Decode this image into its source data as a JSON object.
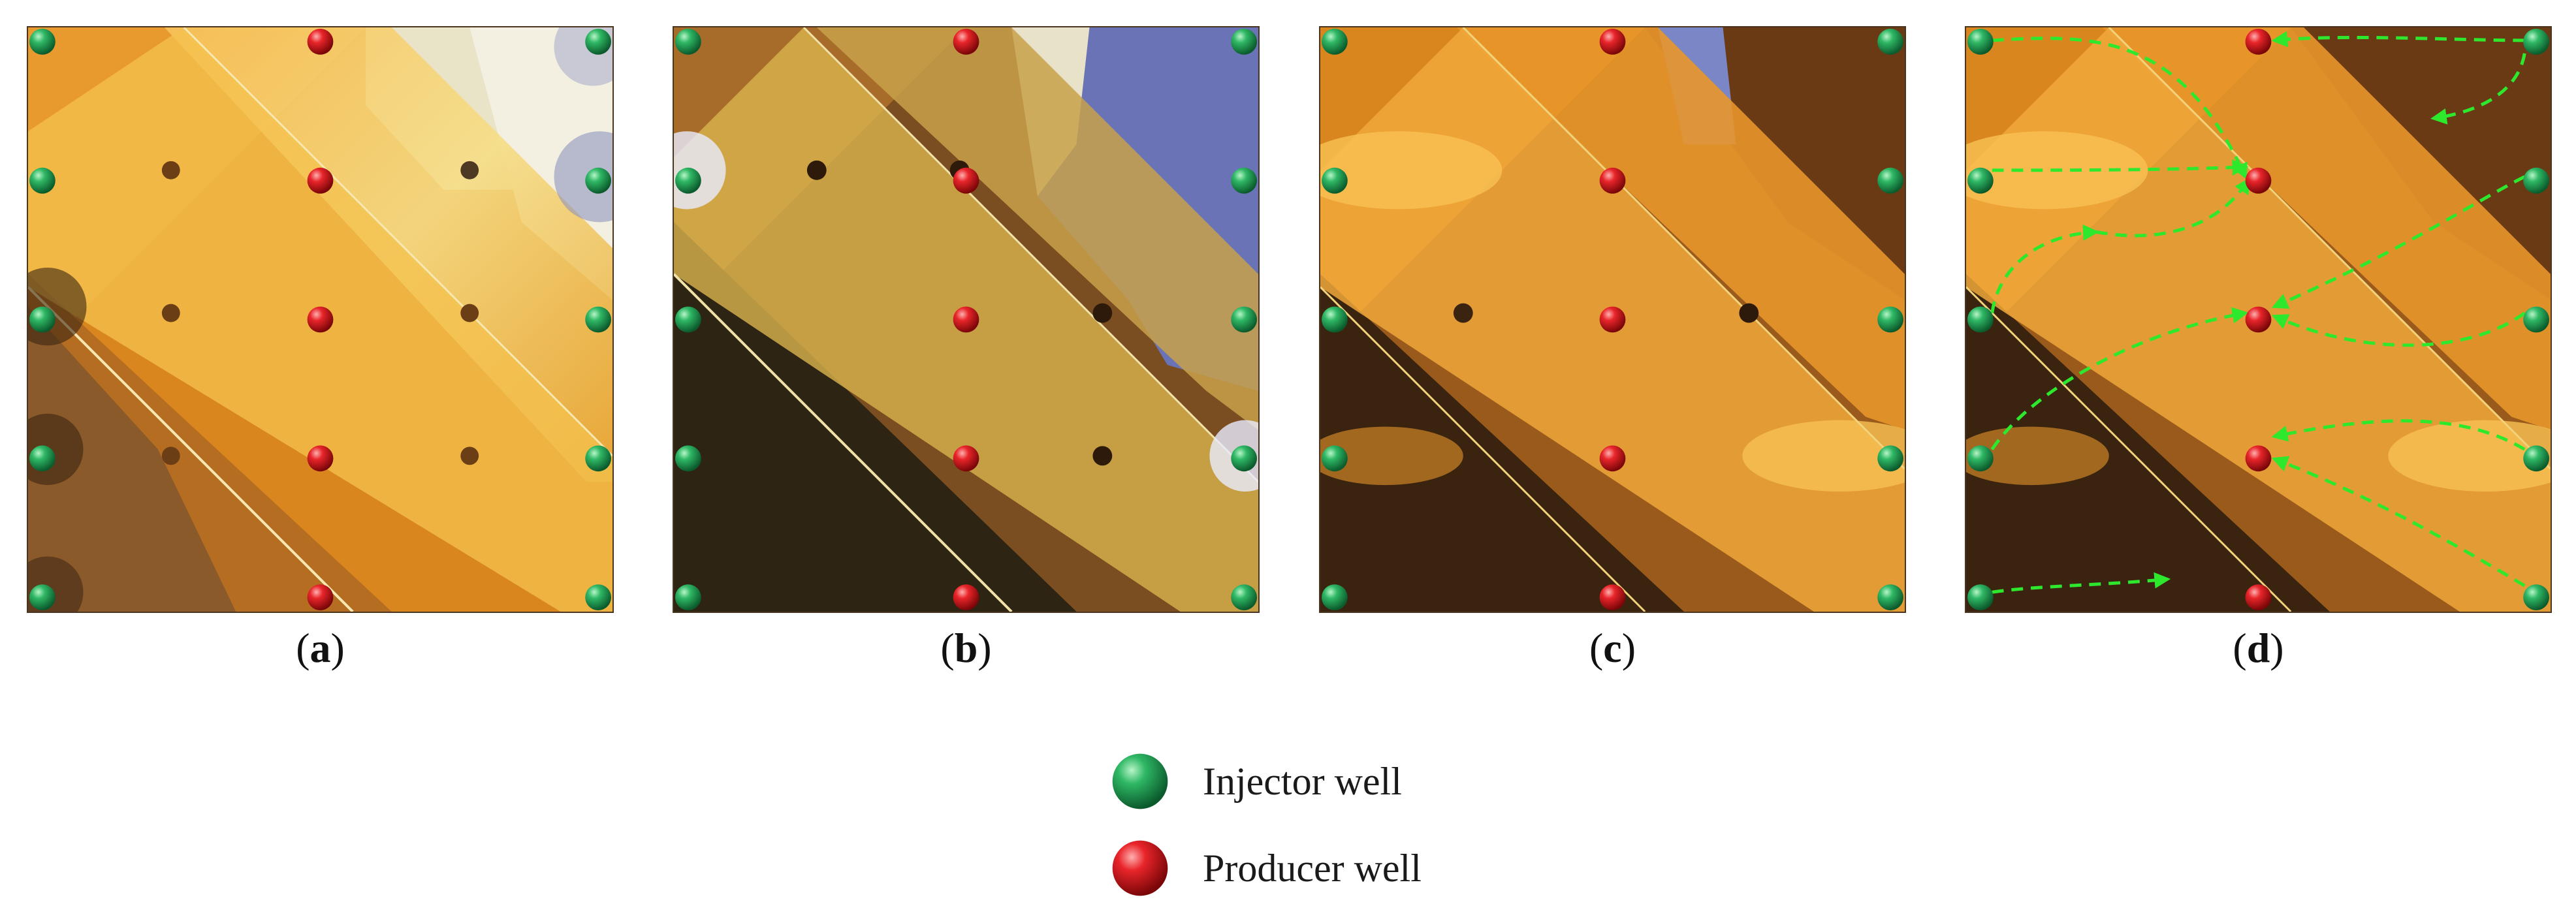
{
  "panels": [
    {
      "key": "a",
      "caption_open": "(",
      "caption_letter": "a",
      "caption_close": ")"
    },
    {
      "key": "b",
      "caption_open": "(",
      "caption_letter": "b",
      "caption_close": ")"
    },
    {
      "key": "c",
      "caption_open": "(",
      "caption_letter": "c",
      "caption_close": ")"
    },
    {
      "key": "d",
      "caption_open": "(",
      "caption_letter": "d",
      "caption_close": ")"
    }
  ],
  "legend": {
    "injector_label": "Injector well",
    "producer_label": "Producer well",
    "injector_color": "#1f9a4c",
    "producer_color": "#d9141a"
  },
  "colors": {
    "flow_arrow": "#2ee82e",
    "fracture_band": "#f2b33a",
    "oil_dark": "#3d2a12",
    "water_blue": "#6f78b8"
  }
}
